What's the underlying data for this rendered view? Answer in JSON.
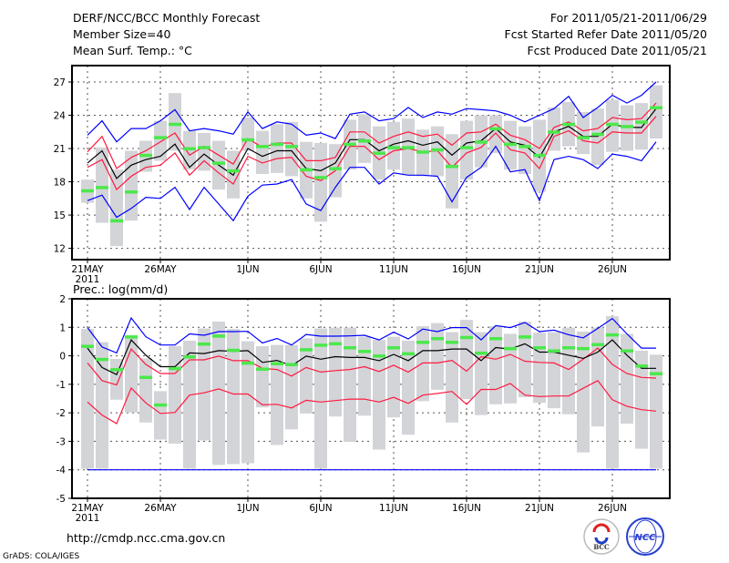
{
  "header": {
    "title": "DERF/NCC/BCC Monthly Forecast",
    "member_size": "Member Size=40",
    "variable": "Mean Surf. Temp.: °C",
    "period": "For 2011/05/21-2011/06/29",
    "started": "Fcst Started Refer Date 2011/05/20",
    "produced": "Fcst Produced Date 2011/05/21"
  },
  "footer": {
    "url": "http://cmdp.ncc.cma.gov.cn",
    "credit": "GrADS: COLA/IGES",
    "logo_bcc": "BCC",
    "logo_ncc": "NCC"
  },
  "colors": {
    "envelope": "#0000ff",
    "sd": "#ff1a40",
    "mean": "#000000",
    "marker": "#4be84b",
    "bar": "#d3d4d8",
    "grid": "#555555"
  },
  "chart_data": [
    {
      "type": "line",
      "title": "Mean Surf. Temp.: °C",
      "ylabel": "°C",
      "ylim": [
        10.98,
        28.48
      ],
      "yticks": [
        12,
        15,
        18,
        21,
        24,
        27
      ],
      "xtick_days": [
        0,
        5,
        11,
        16,
        21,
        26,
        31,
        36
      ],
      "xtick_labels": [
        "21MAY",
        "26MAY",
        "1JUN",
        "6JUN",
        "11JUN",
        "16JUN",
        "21JUN",
        "26JUN"
      ],
      "xtick_year": "2011",
      "grid": true,
      "days": 40,
      "series": [
        {
          "name": "upper-envelope",
          "color": "#0000ff",
          "values": [
            22.2,
            23.5,
            21.6,
            22.8,
            22.8,
            23.5,
            24.5,
            22.6,
            22.8,
            22.6,
            22.3,
            24.3,
            22.8,
            23.4,
            23.2,
            22.2,
            22.4,
            21.9,
            24.1,
            24.3,
            23.5,
            23.7,
            24.7,
            23.8,
            24.3,
            24.1,
            24.6,
            24.5,
            24.4,
            24.0,
            23.4,
            24.0,
            24.6,
            25.7,
            23.8,
            24.7,
            25.8,
            25.1,
            25.8,
            27.0
          ]
        },
        {
          "name": "plus-sd",
          "color": "#ff1a40",
          "values": [
            20.7,
            22.1,
            19.2,
            20.2,
            20.8,
            21.6,
            22.4,
            20.4,
            21.2,
            20.4,
            19.6,
            21.9,
            21.1,
            21.5,
            21.5,
            19.9,
            19.9,
            20.2,
            22.5,
            22.5,
            21.5,
            22.1,
            22.5,
            22.1,
            22.3,
            21.3,
            22.4,
            22.5,
            23.2,
            22.2,
            21.8,
            21.0,
            22.9,
            23.4,
            22.6,
            22.8,
            23.8,
            23.6,
            23.7,
            25.1
          ]
        },
        {
          "name": "ensemble-mean",
          "color": "#000000",
          "values": [
            19.7,
            20.8,
            18.3,
            19.5,
            20.0,
            20.3,
            21.4,
            19.3,
            20.5,
            19.5,
            18.6,
            21.0,
            20.3,
            20.8,
            20.8,
            19.2,
            19.0,
            19.7,
            21.8,
            21.8,
            20.8,
            21.4,
            21.7,
            21.3,
            21.6,
            20.4,
            21.5,
            21.7,
            22.8,
            21.6,
            21.3,
            20.2,
            22.5,
            23.0,
            22.1,
            22.1,
            23.2,
            22.9,
            22.9,
            24.6
          ]
        },
        {
          "name": "minus-sd",
          "color": "#ff1a40",
          "values": [
            19.3,
            20.0,
            17.3,
            18.5,
            19.3,
            19.5,
            20.6,
            18.6,
            19.9,
            18.8,
            17.8,
            20.3,
            19.7,
            20.1,
            20.2,
            18.5,
            18.1,
            19.0,
            21.2,
            21.2,
            20.0,
            20.8,
            21.0,
            20.7,
            20.8,
            19.3,
            20.6,
            21.1,
            22.4,
            20.9,
            20.6,
            19.2,
            22.1,
            22.6,
            21.7,
            21.5,
            22.5,
            22.4,
            22.4,
            23.9
          ]
        },
        {
          "name": "lower-envelope",
          "color": "#0000ff",
          "values": [
            16.3,
            16.8,
            14.8,
            15.6,
            16.6,
            16.5,
            17.5,
            15.5,
            17.5,
            16.0,
            14.5,
            16.7,
            17.7,
            17.8,
            18.2,
            16.0,
            15.4,
            17.5,
            19.3,
            19.3,
            17.8,
            18.8,
            18.6,
            18.6,
            18.5,
            16.2,
            18.4,
            19.3,
            21.2,
            18.9,
            19.1,
            16.3,
            20.0,
            20.3,
            20.0,
            19.2,
            20.5,
            20.3,
            19.9,
            21.6
          ]
        }
      ],
      "markers": [
        17.2,
        17.5,
        14.5,
        17.1,
        20.4,
        22.0,
        23.2,
        21.0,
        21.1,
        19.7,
        19.0,
        21.8,
        21.2,
        21.4,
        21.2,
        19.1,
        18.4,
        19.2,
        21.4,
        21.7,
        20.6,
        21.1,
        21.1,
        20.7,
        20.9,
        19.4,
        21.1,
        21.6,
        22.8,
        21.4,
        21.2,
        20.4,
        22.5,
        23.2,
        22.0,
        22.3,
        23.2,
        23.0,
        23.4,
        24.7
      ],
      "bars_high": [
        18.2,
        21.1,
        19.1,
        20.8,
        21.7,
        23.5,
        26.0,
        22.6,
        22.4,
        21.7,
        20.8,
        23.8,
        22.6,
        23.2,
        23.4,
        21.6,
        21.5,
        21.4,
        23.6,
        24.1,
        23.0,
        23.4,
        23.7,
        22.7,
        23.0,
        22.3,
        23.5,
        24.0,
        24.0,
        23.5,
        23.0,
        23.6,
        24.7,
        25.2,
        24.3,
        24.6,
        25.4,
        24.9,
        25.1,
        26.7
      ],
      "bars_low": [
        16.1,
        14.3,
        12.2,
        14.5,
        18.9,
        19.9,
        20.8,
        19.1,
        19.0,
        17.3,
        16.5,
        20.8,
        18.7,
        18.8,
        18.5,
        16.5,
        14.4,
        16.6,
        19.1,
        19.7,
        18.2,
        19.1,
        18.6,
        18.5,
        18.5,
        15.6,
        18.2,
        19.3,
        20.6,
        19.1,
        18.7,
        17.1,
        20.8,
        21.2,
        20.5,
        19.5,
        20.7,
        20.8,
        20.9,
        21.9
      ]
    },
    {
      "type": "line",
      "title": "Prec.: log(mm/d)",
      "ylabel": "log(mm/d)",
      "ylim": [
        -5,
        2
      ],
      "yticks": [
        -5,
        -4,
        -3,
        -2,
        -1,
        0,
        1,
        2
      ],
      "xtick_days": [
        0,
        5,
        11,
        16,
        21,
        26,
        31,
        36
      ],
      "xtick_labels": [
        "21MAY",
        "26MAY",
        "1JUN",
        "6JUN",
        "11JUN",
        "16JUN",
        "21JUN",
        "26JUN"
      ],
      "xtick_year": "2011",
      "grid": true,
      "days": 40,
      "series": [
        {
          "name": "upper-envelope",
          "color": "#0000ff",
          "values": [
            0.99,
            0.31,
            0.1,
            1.33,
            0.67,
            0.38,
            0.38,
            0.77,
            0.72,
            0.85,
            0.85,
            0.86,
            0.45,
            0.61,
            0.38,
            0.75,
            0.69,
            0.69,
            0.7,
            0.72,
            0.56,
            0.83,
            0.59,
            0.94,
            0.85,
            0.99,
            0.99,
            0.56,
            1.06,
            0.99,
            1.17,
            0.85,
            0.9,
            0.74,
            0.63,
            0.96,
            1.31,
            0.77,
            0.27,
            0.27
          ]
        },
        {
          "name": "plus-sd",
          "color": "#ff1a40",
          "values": [
            -0.25,
            -0.87,
            -1.02,
            0.24,
            -0.3,
            -0.62,
            -0.62,
            -0.14,
            -0.14,
            -0.01,
            -0.17,
            -0.17,
            -0.44,
            -0.48,
            -0.71,
            -0.41,
            -0.57,
            -0.52,
            -0.48,
            -0.38,
            -0.55,
            -0.33,
            -0.57,
            -0.25,
            -0.25,
            -0.16,
            -0.54,
            -0.03,
            -0.12,
            0.05,
            -0.19,
            -0.23,
            -0.25,
            -0.48,
            -0.12,
            0.27,
            -0.3,
            -0.62,
            -0.76,
            -0.78
          ]
        },
        {
          "name": "ensemble-mean",
          "color": "#000000",
          "values": [
            0.27,
            -0.41,
            -0.66,
            0.56,
            0.02,
            -0.38,
            -0.38,
            0.1,
            0.08,
            0.18,
            0.16,
            0.18,
            -0.23,
            -0.16,
            -0.35,
            -0.01,
            -0.12,
            -0.03,
            -0.06,
            -0.06,
            -0.17,
            0.05,
            -0.17,
            0.18,
            0.18,
            0.24,
            0.24,
            -0.17,
            0.29,
            0.24,
            0.42,
            0.13,
            0.13,
            0.02,
            -0.09,
            0.13,
            0.56,
            0.02,
            -0.44,
            -0.44
          ]
        },
        {
          "name": "minus-sd",
          "color": "#ff1a40",
          "values": [
            -1.62,
            -2.08,
            -2.38,
            -1.13,
            -1.65,
            -2.02,
            -1.99,
            -1.38,
            -1.3,
            -1.16,
            -1.34,
            -1.34,
            -1.72,
            -1.7,
            -1.83,
            -1.56,
            -1.62,
            -1.57,
            -1.52,
            -1.52,
            -1.62,
            -1.46,
            -1.67,
            -1.38,
            -1.32,
            -1.25,
            -1.7,
            -1.18,
            -1.18,
            -0.97,
            -1.38,
            -1.43,
            -1.41,
            -1.41,
            -1.14,
            -0.87,
            -1.54,
            -1.77,
            -1.89,
            -1.94
          ]
        },
        {
          "name": "lower-envelope",
          "color": "#0000ff",
          "values": [
            -4,
            -4,
            -4,
            -4,
            -4,
            -4,
            -4,
            -4,
            -4,
            -4,
            -4,
            -4,
            -4,
            -4,
            -4,
            -4,
            -4,
            -4,
            -4,
            -4,
            -4,
            -4,
            -4,
            -4,
            -4,
            -4,
            -4,
            -4,
            -4,
            -4,
            -4,
            -4,
            -4,
            -4,
            -4,
            -4,
            -4,
            -4,
            -4,
            -4
          ]
        }
      ],
      "markers": [
        0.34,
        -0.12,
        -0.48,
        0.67,
        -0.75,
        -1.72,
        -0.44,
        -0.03,
        0.42,
        0.7,
        0.2,
        -0.25,
        -0.46,
        -0.27,
        -0.3,
        0.22,
        0.38,
        0.43,
        0.29,
        0.16,
        0.0,
        0.29,
        0.08,
        0.48,
        0.61,
        0.48,
        0.65,
        0.1,
        0.61,
        0.26,
        0.67,
        0.29,
        0.18,
        0.29,
        0.26,
        0.4,
        0.74,
        0.18,
        -0.35,
        -0.62
      ],
      "bars_high": [
        0.94,
        0.48,
        -0.11,
        0.72,
        -0.09,
        -1.24,
        0.34,
        0.53,
        0.96,
        1.2,
        0.94,
        0.51,
        0.34,
        0.38,
        0.38,
        0.61,
        0.96,
        0.99,
        0.99,
        0.67,
        0.56,
        0.67,
        0.53,
        1.04,
        1.15,
        0.83,
        1.26,
        0.83,
        1.04,
        0.77,
        1.2,
        0.81,
        0.83,
        0.99,
        0.85,
        0.99,
        1.39,
        0.77,
        0.18,
        0.04
      ],
      "bars_low": [
        -3.96,
        -3.96,
        -1.54,
        -1.99,
        -2.34,
        -2.94,
        -3.08,
        -3.96,
        -2.97,
        -3.83,
        -3.8,
        -3.77,
        -1.81,
        -3.13,
        -2.58,
        -2.02,
        -3.96,
        -2.13,
        -3.02,
        -2.1,
        -3.29,
        -2.16,
        -2.77,
        -1.59,
        -1.19,
        -2.34,
        -1.52,
        -2.08,
        -1.7,
        -1.67,
        -1.45,
        -1.65,
        -1.84,
        -2.05,
        -3.39,
        -2.48,
        -3.96,
        -2.38,
        -3.26,
        -3.96
      ]
    }
  ]
}
